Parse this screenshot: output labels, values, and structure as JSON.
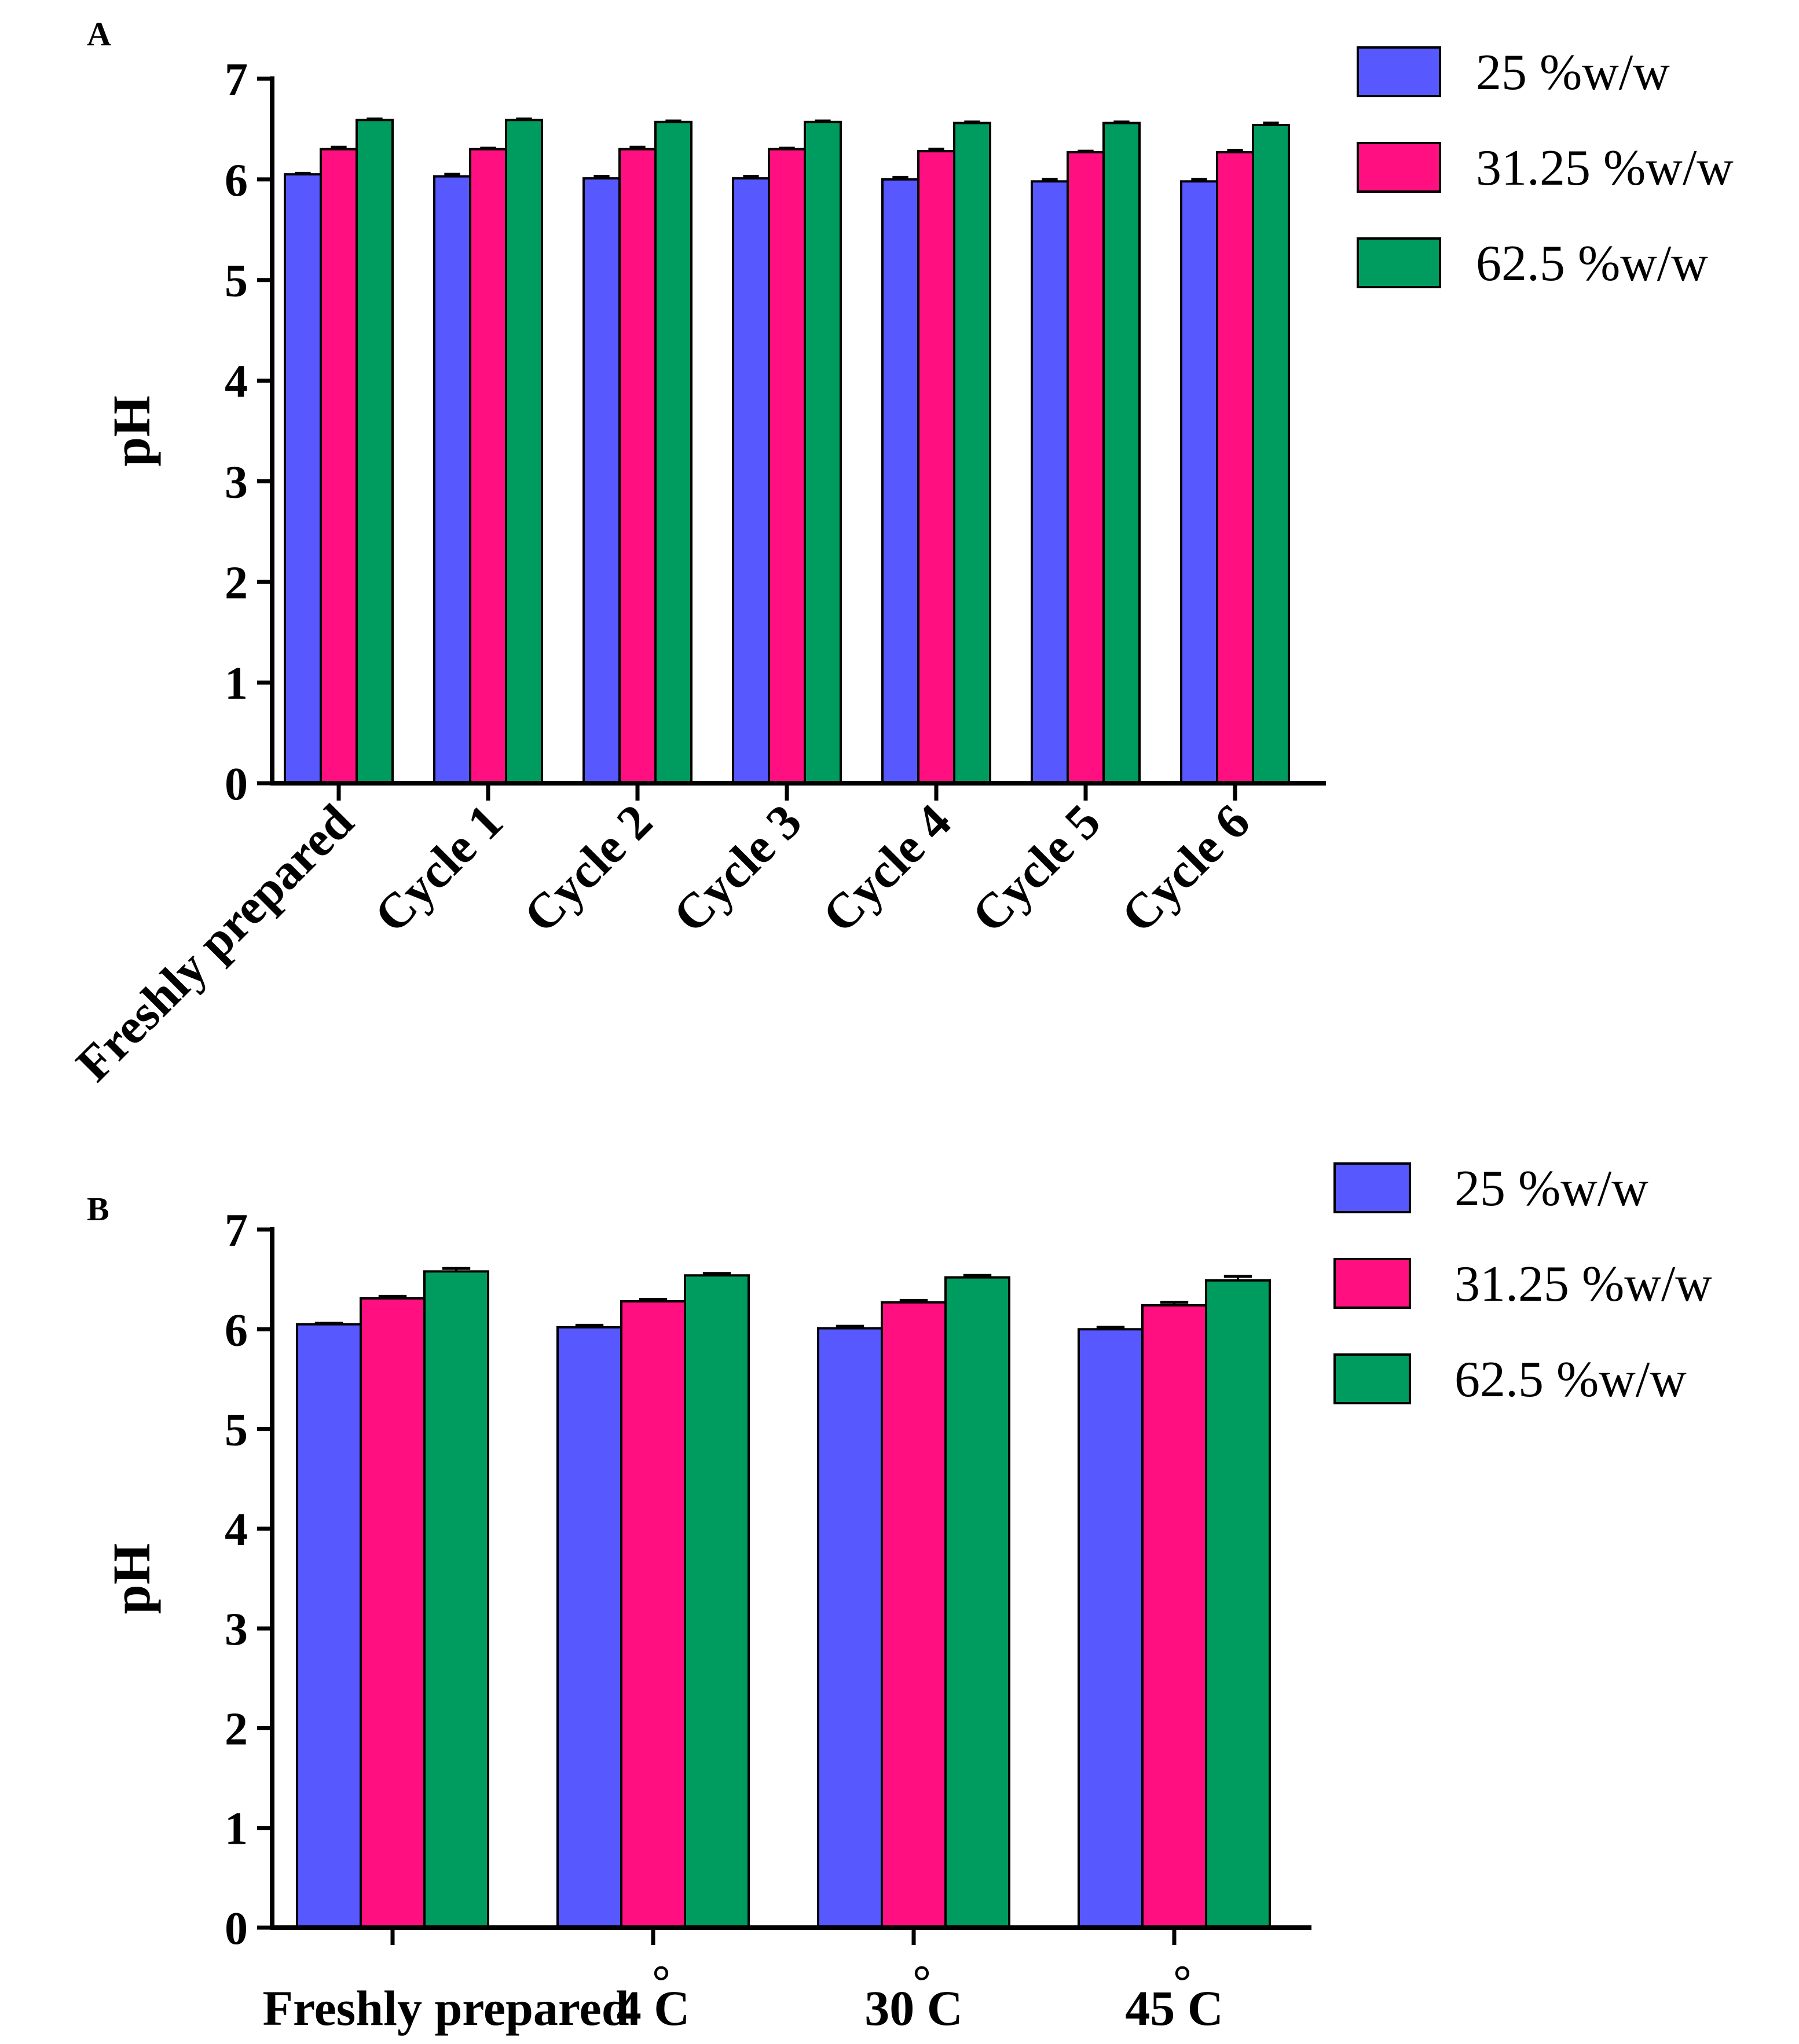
{
  "chart_data": [
    {
      "type": "bar",
      "panel_label": "A",
      "title": "",
      "xlabel": "",
      "ylabel": "pH",
      "ylim": [
        0,
        7
      ],
      "yticks": [
        "0",
        "1",
        "2",
        "3",
        "4",
        "5",
        "6",
        "7"
      ],
      "grid": false,
      "error_bars": true,
      "legend_position": "top-right",
      "categories": [
        "Freshly prepared",
        "Cycle 1",
        "Cycle 2",
        "Cycle 3",
        "Cycle 4",
        "Cycle 5",
        "Cycle 6"
      ],
      "category_label_rotation": -45,
      "series": [
        {
          "name": "25 %w/w",
          "color": "#5858FF",
          "values": [
            6.05,
            6.03,
            6.01,
            6.01,
            6.0,
            5.98,
            5.98
          ],
          "errors": [
            0.01,
            0.02,
            0.02,
            0.02,
            0.02,
            0.02,
            0.02
          ]
        },
        {
          "name": "31.25 %w/w",
          "color": "#FF0F80",
          "values": [
            6.3,
            6.3,
            6.3,
            6.3,
            6.28,
            6.27,
            6.27
          ],
          "errors": [
            0.02,
            0.01,
            0.02,
            0.01,
            0.02,
            0.01,
            0.02
          ]
        },
        {
          "name": "62.5 %w/w",
          "color": "#009C5F",
          "values": [
            6.59,
            6.59,
            6.57,
            6.57,
            6.56,
            6.56,
            6.54
          ],
          "errors": [
            0.01,
            0.01,
            0.01,
            0.01,
            0.01,
            0.01,
            0.02
          ]
        }
      ]
    },
    {
      "type": "bar",
      "panel_label": "B",
      "title": "",
      "xlabel": "",
      "ylabel": "pH",
      "ylim": [
        0,
        7
      ],
      "yticks": [
        "0",
        "1",
        "2",
        "3",
        "4",
        "5",
        "6",
        "7"
      ],
      "grid": false,
      "error_bars": true,
      "legend_position": "top-right",
      "categories": [
        "Freshly prepared",
        "4 C",
        "30 C",
        "45 C"
      ],
      "category_degree_mark": "°",
      "category_label_rotation": 0,
      "series": [
        {
          "name": "25 %w/w",
          "color": "#5858FF",
          "values": [
            6.05,
            6.02,
            6.01,
            6.0
          ],
          "errors": [
            0.01,
            0.02,
            0.02,
            0.02
          ]
        },
        {
          "name": "31.25 %w/w",
          "color": "#FF0F80",
          "values": [
            6.31,
            6.28,
            6.27,
            6.24
          ],
          "errors": [
            0.02,
            0.02,
            0.02,
            0.03
          ]
        },
        {
          "name": "62.5 %w/w",
          "color": "#009C5F",
          "values": [
            6.58,
            6.54,
            6.52,
            6.49
          ],
          "errors": [
            0.03,
            0.02,
            0.02,
            0.04
          ]
        }
      ]
    }
  ]
}
